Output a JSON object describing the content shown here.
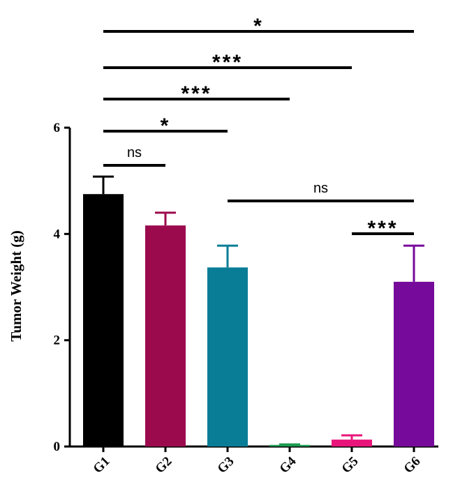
{
  "chart_data": {
    "type": "bar",
    "y_label": "Tumor Weight (g)",
    "categories": [
      "G1",
      "G2",
      "G3",
      "G4",
      "G5",
      "G6"
    ],
    "values": [
      4.75,
      4.16,
      3.37,
      0.03,
      0.13,
      3.1
    ],
    "errors": [
      0.33,
      0.24,
      0.41,
      0.01,
      0.08,
      0.68
    ],
    "colors": [
      "#000000",
      "#9c0a4e",
      "#0a7d96",
      "#1a9a50",
      "#e8157a",
      "#760a9a"
    ],
    "ylim": [
      0,
      6
    ],
    "yticks": [
      0,
      2,
      4,
      6
    ],
    "comparisons": [
      {
        "from": "G1",
        "to": "G2",
        "label": "ns"
      },
      {
        "from": "G1",
        "to": "G3",
        "label": "*"
      },
      {
        "from": "G1",
        "to": "G4",
        "label": "***"
      },
      {
        "from": "G1",
        "to": "G5",
        "label": "***"
      },
      {
        "from": "G1",
        "to": "G6",
        "label": "*"
      },
      {
        "from": "G3",
        "to": "G6",
        "label": "ns"
      },
      {
        "from": "G5",
        "to": "G6",
        "label": "***"
      }
    ]
  }
}
